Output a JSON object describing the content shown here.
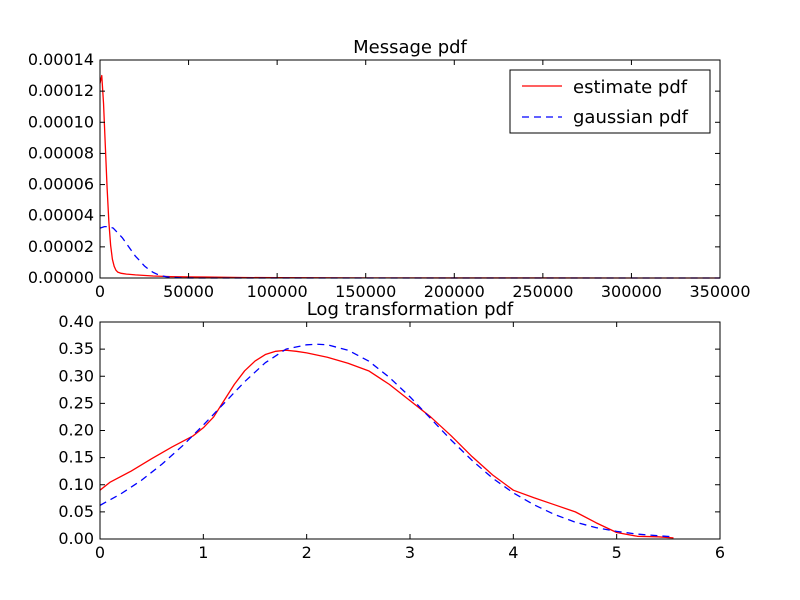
{
  "chart_data": [
    {
      "type": "line",
      "title": "Message pdf",
      "xlabel": "",
      "ylabel": "",
      "xlim": [
        0,
        350000
      ],
      "ylim": [
        0,
        0.00014
      ],
      "x_ticks": [
        "0",
        "50000",
        "100000",
        "150000",
        "200000",
        "250000",
        "300000",
        "350000"
      ],
      "y_ticks": [
        "0.00000",
        "0.00002",
        "0.00004",
        "0.00006",
        "0.00008",
        "0.00010",
        "0.00012",
        "0.00014"
      ],
      "legend": {
        "position": "top-right",
        "entries": [
          "estimate pdf",
          "gaussian pdf"
        ]
      },
      "series": [
        {
          "name": "estimate pdf",
          "color": "#ff0000",
          "style": "solid",
          "x": [
            0,
            1000,
            2000,
            3000,
            4000,
            5000,
            6000,
            7000,
            8000,
            9000,
            10000,
            12000,
            15000,
            20000,
            30000,
            40000,
            50000,
            60000,
            70000,
            80000,
            100000,
            150000,
            200000,
            250000,
            300000,
            350000
          ],
          "y": [
            0.000125,
            0.00013,
            0.000112,
            8.5e-05,
            5.8e-05,
            3.6e-05,
            2.1e-05,
            1.2e-05,
            7.5e-06,
            5e-06,
            3.8e-06,
            3e-06,
            2.5e-06,
            2e-06,
            1.3e-06,
            9e-07,
            7e-07,
            6e-07,
            5e-07,
            3e-07,
            2e-07,
            8e-08,
            5e-08,
            3e-08,
            2e-08,
            1e-08
          ]
        },
        {
          "name": "gaussian pdf",
          "color": "#0000ff",
          "style": "dashed",
          "x": [
            0,
            2500,
            5000,
            7500,
            10000,
            12500,
            15000,
            17500,
            20000,
            22500,
            25000,
            27500,
            30000,
            32500,
            35000,
            37500,
            40000,
            45000,
            50000,
            60000,
            100000,
            200000,
            300000,
            350000
          ],
          "y": [
            3.2e-05,
            3.3e-05,
            3.3e-05,
            3.2e-05,
            2.9e-05,
            2.6e-05,
            2.2e-05,
            1.8e-05,
            1.4e-05,
            1.1e-05,
            7.8e-06,
            5.5e-06,
            3.6e-06,
            2.3e-06,
            1.4e-06,
            8e-07,
            5e-07,
            1.5e-07,
            4e-08,
            0,
            0,
            0,
            0,
            0
          ]
        }
      ]
    },
    {
      "type": "line",
      "title": "Log transformation pdf",
      "xlabel": "",
      "ylabel": "",
      "xlim": [
        0,
        6
      ],
      "ylim": [
        0,
        0.4
      ],
      "x_ticks": [
        "0",
        "1",
        "2",
        "3",
        "4",
        "5",
        "6"
      ],
      "y_ticks": [
        "0.00",
        "0.05",
        "0.10",
        "0.15",
        "0.20",
        "0.25",
        "0.30",
        "0.35",
        "0.40"
      ],
      "series": [
        {
          "name": "estimate pdf",
          "color": "#ff0000",
          "style": "solid",
          "x": [
            0,
            0.1,
            0.3,
            0.5,
            0.7,
            0.9,
            1.0,
            1.1,
            1.2,
            1.3,
            1.4,
            1.5,
            1.6,
            1.7,
            1.8,
            1.9,
            2.0,
            2.2,
            2.4,
            2.6,
            2.8,
            3.0,
            3.2,
            3.4,
            3.6,
            3.8,
            4.0,
            4.2,
            4.4,
            4.6,
            4.8,
            5.0,
            5.2,
            5.4,
            5.55
          ],
          "y": [
            0.09,
            0.105,
            0.125,
            0.148,
            0.17,
            0.19,
            0.205,
            0.225,
            0.255,
            0.285,
            0.31,
            0.328,
            0.34,
            0.346,
            0.348,
            0.346,
            0.343,
            0.335,
            0.324,
            0.31,
            0.285,
            0.255,
            0.225,
            0.19,
            0.152,
            0.118,
            0.09,
            0.076,
            0.063,
            0.05,
            0.03,
            0.012,
            0.005,
            0.004,
            0.002
          ]
        },
        {
          "name": "gaussian pdf",
          "color": "#0000ff",
          "style": "dashed",
          "x": [
            0,
            0.2,
            0.4,
            0.6,
            0.8,
            1.0,
            1.2,
            1.4,
            1.6,
            1.8,
            2.0,
            2.1,
            2.2,
            2.4,
            2.6,
            2.8,
            3.0,
            3.2,
            3.4,
            3.6,
            3.8,
            4.0,
            4.2,
            4.4,
            4.6,
            4.8,
            5.0,
            5.2,
            5.4,
            5.55
          ],
          "y": [
            0.062,
            0.083,
            0.108,
            0.138,
            0.172,
            0.21,
            0.25,
            0.29,
            0.325,
            0.35,
            0.358,
            0.359,
            0.358,
            0.348,
            0.328,
            0.298,
            0.262,
            0.222,
            0.182,
            0.145,
            0.112,
            0.085,
            0.063,
            0.045,
            0.031,
            0.021,
            0.014,
            0.009,
            0.006,
            0.004
          ]
        }
      ]
    }
  ]
}
